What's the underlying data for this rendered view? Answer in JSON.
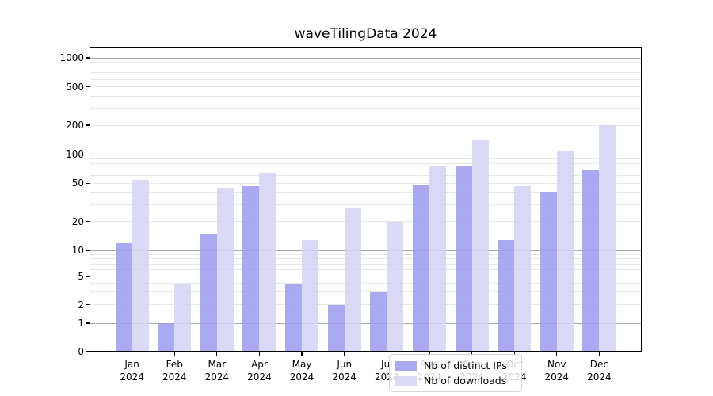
{
  "title": "waveTilingData 2024",
  "chart_data": {
    "type": "bar",
    "title": "waveTilingData 2024",
    "categories": [
      "Jan",
      "Feb",
      "Mar",
      "Apr",
      "May",
      "Jun",
      "Jul",
      "Aug",
      "Sep",
      "Oct",
      "Nov",
      "Dec"
    ],
    "category_year": "2024",
    "series": [
      {
        "name": "Nb of distinct IPs",
        "color": "#9b9bf0",
        "values": [
          12,
          1,
          15,
          47,
          4,
          2,
          3,
          48,
          75,
          13,
          40,
          68
        ]
      },
      {
        "name": "Nb of downloads",
        "color": "#d4d4f6",
        "values": [
          54,
          4,
          44,
          63,
          13,
          28,
          20,
          75,
          140,
          47,
          107,
          200
        ]
      }
    ],
    "ylabel": "",
    "xlabel": "",
    "y_scale": "symlog-like",
    "ylim": [
      0,
      1300
    ],
    "y_ticks": [
      0,
      1,
      2,
      5,
      10,
      20,
      50,
      100,
      200,
      500,
      1000
    ],
    "y_major_gridline_ticks": [
      1,
      10,
      100,
      1000
    ],
    "y_minor_gridlines": [
      3,
      4,
      6,
      7,
      8,
      9,
      30,
      40,
      60,
      70,
      80,
      90,
      300,
      400,
      600,
      700,
      800,
      900
    ],
    "grid": true,
    "legend_position": "lower center"
  }
}
